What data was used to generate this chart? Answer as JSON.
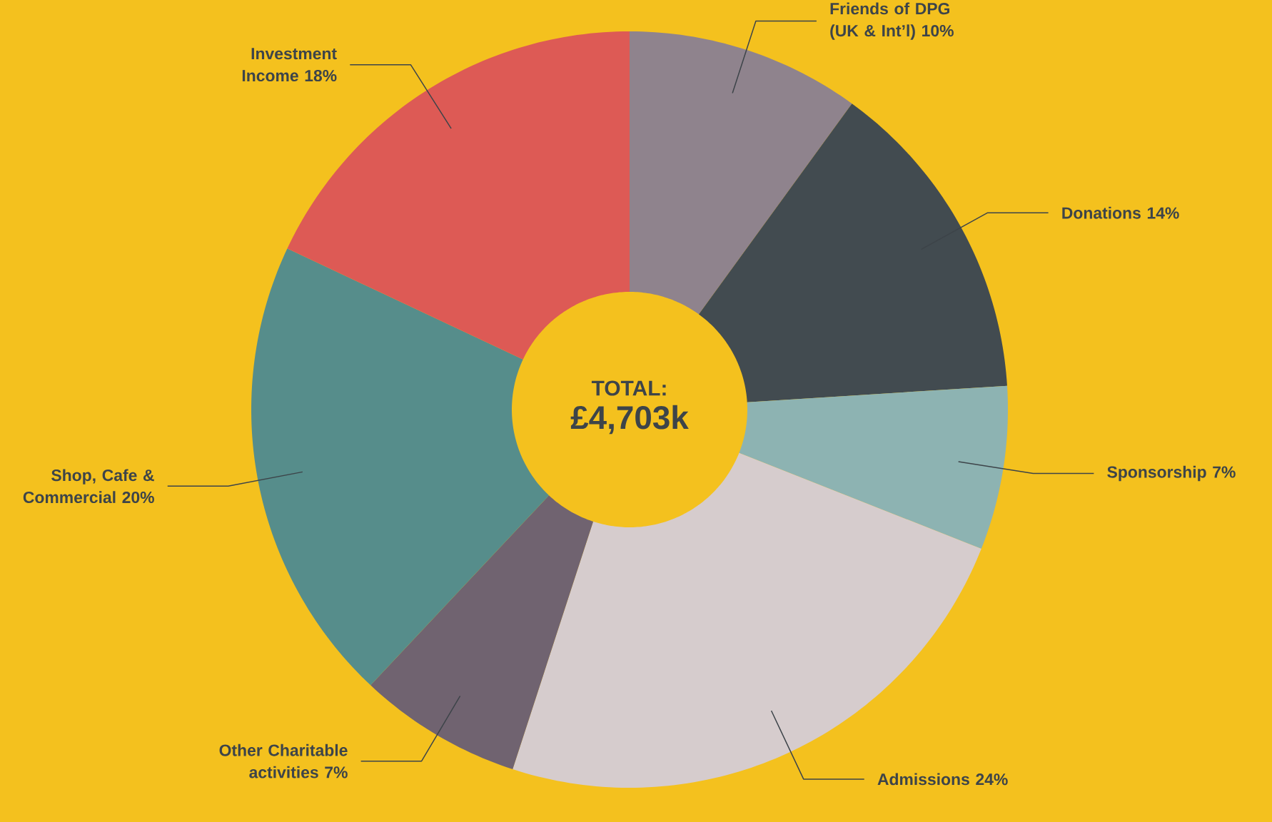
{
  "chart_data": {
    "type": "donut",
    "title": "TOTAL:",
    "subtitle": "£4,703k",
    "categories": [
      "Friends of DPG (UK & Int’l)",
      "Donations",
      "Sponsorship",
      "Admissions",
      "Other Charitable activities",
      "Shop, Cafe & Commercial",
      "Investment Income"
    ],
    "values": [
      10,
      14,
      7,
      24,
      7,
      20,
      18
    ],
    "value_labels": [
      "10%",
      "14%",
      "7%",
      "24%",
      "7%",
      "20%",
      "18%"
    ],
    "colors": [
      "#8f838d",
      "#424b50",
      "#8db3b2",
      "#d6cccd",
      "#706370",
      "#568d8b",
      "#dd5a55"
    ]
  }
}
